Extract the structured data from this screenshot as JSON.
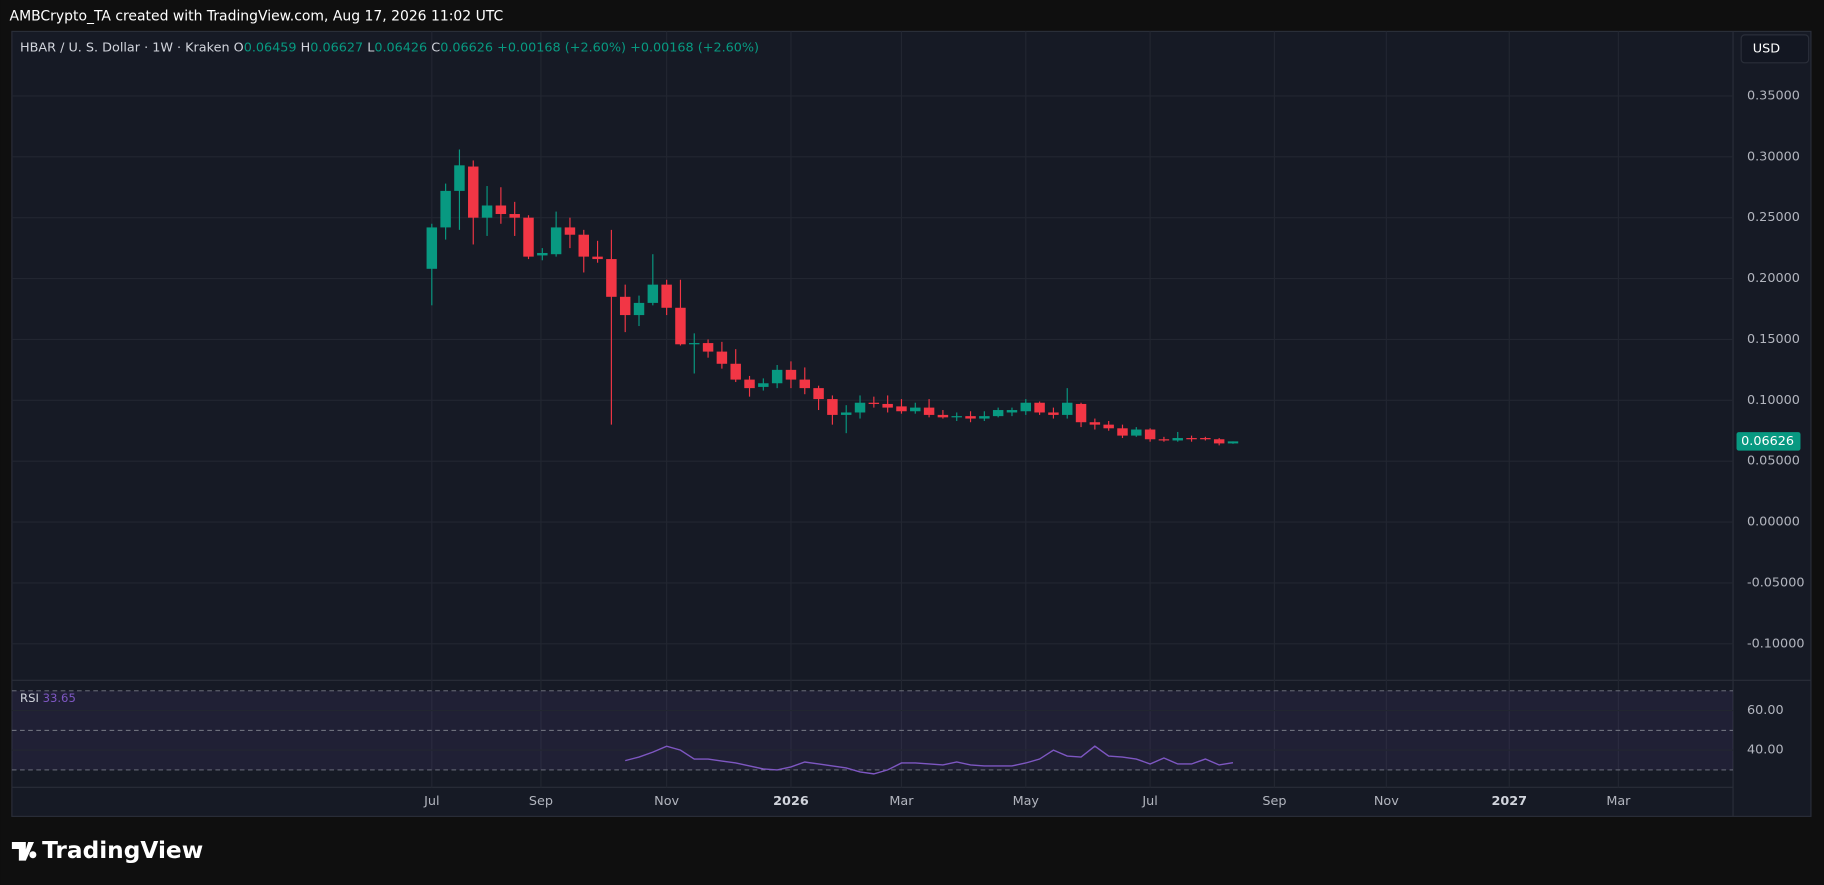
{
  "header": "AMBCrypto_TA created with TradingView.com, Aug 17, 2026 11:02 UTC",
  "footer": "TradingView",
  "chart_data": [
    {
      "type": "candlestick",
      "title": "HBAR / U. S. Dollar · 1W · Kraken",
      "ohlc_labels": [
        "O",
        "H",
        "L",
        "C"
      ],
      "change": "+0.00168 (+2.60%)",
      "currency": "USD",
      "up_color": "#089981",
      "down_color": "#f23645",
      "grid": true,
      "x": [
        0,
        1,
        2,
        3,
        4,
        5,
        6,
        7,
        8,
        9,
        10,
        11,
        12,
        13,
        14,
        15,
        16,
        17,
        18,
        19,
        20,
        21,
        22,
        23,
        24,
        25,
        26,
        27,
        28,
        29,
        30,
        31,
        32,
        33,
        34,
        35,
        36,
        37,
        38,
        39,
        40,
        41,
        42,
        43,
        44,
        45,
        46,
        47,
        48,
        49,
        50,
        51,
        52,
        53,
        54,
        55,
        56,
        57,
        58
      ],
      "open": [
        0.208,
        0.242,
        0.272,
        0.292,
        0.25,
        0.26,
        0.253,
        0.25,
        0.219,
        0.22,
        0.242,
        0.236,
        0.218,
        0.216,
        0.185,
        0.17,
        0.18,
        0.195,
        0.176,
        0.146,
        0.147,
        0.14,
        0.13,
        0.117,
        0.111,
        0.114,
        0.125,
        0.117,
        0.11,
        0.101,
        0.088,
        0.09,
        0.098,
        0.097,
        0.095,
        0.091,
        0.094,
        0.088,
        0.086,
        0.087,
        0.085,
        0.087,
        0.09,
        0.091,
        0.098,
        0.09,
        0.088,
        0.097,
        0.082,
        0.08,
        0.077,
        0.071,
        0.076,
        0.068,
        0.067,
        0.069,
        0.069,
        0.068,
        0.06459
      ],
      "high": [
        0.245,
        0.278,
        0.306,
        0.297,
        0.276,
        0.275,
        0.263,
        0.252,
        0.225,
        0.255,
        0.25,
        0.24,
        0.231,
        0.24,
        0.195,
        0.186,
        0.22,
        0.199,
        0.199,
        0.155,
        0.15,
        0.148,
        0.142,
        0.12,
        0.118,
        0.129,
        0.132,
        0.127,
        0.112,
        0.104,
        0.096,
        0.104,
        0.103,
        0.104,
        0.101,
        0.098,
        0.101,
        0.092,
        0.09,
        0.091,
        0.091,
        0.094,
        0.094,
        0.101,
        0.099,
        0.094,
        0.11,
        0.098,
        0.085,
        0.083,
        0.08,
        0.078,
        0.077,
        0.07,
        0.074,
        0.071,
        0.07,
        0.069,
        0.06627
      ],
      "low": [
        0.178,
        0.232,
        0.24,
        0.228,
        0.235,
        0.245,
        0.235,
        0.216,
        0.215,
        0.218,
        0.225,
        0.205,
        0.213,
        0.08,
        0.156,
        0.161,
        0.178,
        0.17,
        0.145,
        0.122,
        0.135,
        0.126,
        0.115,
        0.103,
        0.108,
        0.11,
        0.11,
        0.105,
        0.092,
        0.08,
        0.073,
        0.085,
        0.094,
        0.09,
        0.089,
        0.089,
        0.086,
        0.085,
        0.083,
        0.082,
        0.083,
        0.086,
        0.087,
        0.088,
        0.088,
        0.085,
        0.085,
        0.078,
        0.076,
        0.075,
        0.069,
        0.07,
        0.066,
        0.066,
        0.066,
        0.066,
        0.067,
        0.063,
        0.06426
      ],
      "close": [
        0.242,
        0.272,
        0.293,
        0.25,
        0.26,
        0.253,
        0.25,
        0.218,
        0.221,
        0.242,
        0.236,
        0.218,
        0.216,
        0.185,
        0.17,
        0.18,
        0.195,
        0.176,
        0.146,
        0.147,
        0.14,
        0.13,
        0.117,
        0.11,
        0.114,
        0.125,
        0.117,
        0.11,
        0.101,
        0.088,
        0.09,
        0.098,
        0.097,
        0.094,
        0.091,
        0.094,
        0.088,
        0.086,
        0.087,
        0.085,
        0.087,
        0.092,
        0.092,
        0.098,
        0.09,
        0.088,
        0.098,
        0.082,
        0.08,
        0.077,
        0.071,
        0.076,
        0.068,
        0.067,
        0.069,
        0.068,
        0.068,
        0.0646,
        0.06626
      ],
      "xlim": [
        -30.4,
        94.2
      ],
      "xticks": [
        {
          "value": 0,
          "label": "Jul"
        },
        {
          "value": 7.9,
          "label": "Sep"
        },
        {
          "value": 17.0,
          "label": "Nov"
        },
        {
          "value": 26.0,
          "label": "2026"
        },
        {
          "value": 34.0,
          "label": "Mar"
        },
        {
          "value": 43.0,
          "label": "May"
        },
        {
          "value": 52.0,
          "label": "Jul"
        },
        {
          "value": 61.0,
          "label": "Sep"
        },
        {
          "value": 69.1,
          "label": "Nov"
        },
        {
          "value": 78.0,
          "label": "2027"
        },
        {
          "value": 85.9,
          "label": "Mar"
        }
      ],
      "ylim": [
        -0.13,
        0.403
      ],
      "yticks": [
        {
          "value": 0.35,
          "label": "0.35000"
        },
        {
          "value": 0.3,
          "label": "0.30000"
        },
        {
          "value": 0.25,
          "label": "0.25000"
        },
        {
          "value": 0.2,
          "label": "0.20000"
        },
        {
          "value": 0.15,
          "label": "0.15000"
        },
        {
          "value": 0.1,
          "label": "0.10000"
        },
        {
          "value": 0.05,
          "label": "0.05000"
        },
        {
          "value": 0,
          "label": "0.00000"
        },
        {
          "value": -0.05,
          "label": "-0.05000"
        },
        {
          "value": -0.1,
          "label": "-0.10000"
        }
      ]
    },
    {
      "type": "line",
      "name": "RSI",
      "color": "#7e57c2",
      "x": [
        0,
        1,
        2,
        3,
        4,
        5,
        6,
        7,
        8,
        9,
        10,
        11,
        12,
        13,
        14,
        15,
        16,
        17,
        18,
        19,
        20,
        21,
        22,
        23,
        24,
        25,
        26,
        27,
        28,
        29,
        30,
        31,
        32,
        33,
        34,
        35,
        36,
        37,
        38,
        39,
        40,
        41,
        42,
        43,
        44,
        45,
        46,
        47,
        48,
        49,
        50,
        51,
        52,
        53,
        54,
        55,
        56,
        57,
        58
      ],
      "values": [
        null,
        null,
        null,
        null,
        null,
        null,
        null,
        null,
        null,
        null,
        null,
        null,
        null,
        null,
        34.7,
        36.5,
        39,
        42,
        40,
        35.5,
        35.5,
        34.5,
        33.5,
        32,
        30.5,
        30,
        31.5,
        34,
        33,
        32,
        31,
        29,
        28,
        30,
        33.5,
        33.5,
        33,
        32.5,
        34,
        32.5,
        32,
        32,
        32,
        33.5,
        35.5,
        40,
        37,
        36.5,
        42,
        37,
        36.5,
        35.5,
        33,
        36,
        33,
        33,
        35.5,
        32.5,
        33.65
      ],
      "bands": [
        70,
        50,
        30
      ],
      "ylim": [
        21.2,
        75.3
      ],
      "yticks": [
        {
          "value": 60,
          "label": "60.00"
        },
        {
          "value": 40,
          "label": "40.00"
        }
      ]
    }
  ]
}
